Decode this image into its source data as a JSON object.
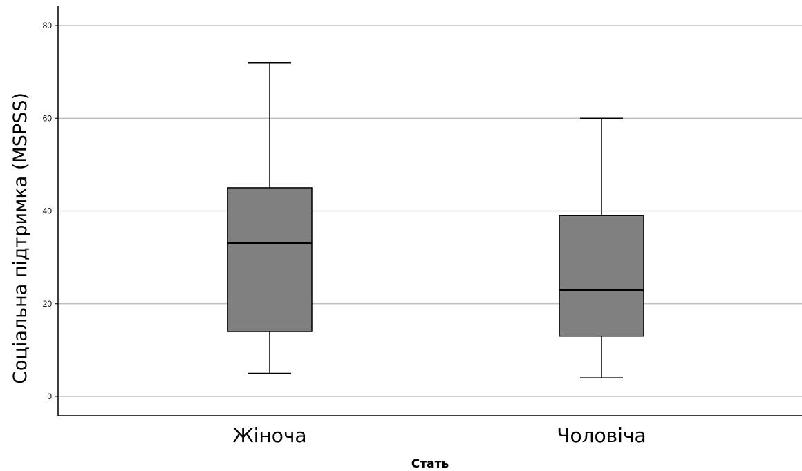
{
  "chart_data": {
    "type": "box",
    "xlabel": "Стать",
    "ylabel": "Соціальна підтримка (MSPSS)",
    "ylim": [
      -4,
      84
    ],
    "yticks": [
      0,
      20,
      40,
      60,
      80
    ],
    "grid": true,
    "categories": [
      "Жіноча",
      "Чоловіча"
    ],
    "boxes": [
      {
        "category": "Жіноча",
        "min": 5,
        "q1": 14,
        "median": 33,
        "q3": 45,
        "max": 72
      },
      {
        "category": "Чоловіча",
        "min": 4,
        "q1": 13,
        "median": 23,
        "q3": 39,
        "max": 60
      }
    ],
    "colors": {
      "box_fill": "#808080",
      "grid": "#b4b4b4",
      "line": "#000000"
    }
  }
}
